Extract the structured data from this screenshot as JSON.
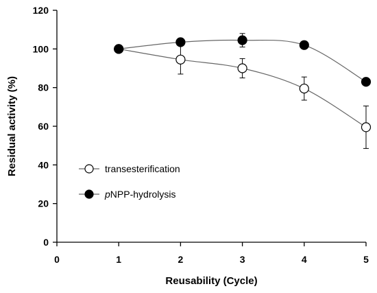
{
  "chart_data": {
    "type": "line",
    "xlabel": "Reusability (Cycle)",
    "ylabel": "Residual activity (%)",
    "xlim": [
      0,
      5
    ],
    "ylim": [
      0,
      120
    ],
    "x_ticks": [
      0,
      1,
      2,
      3,
      4,
      5
    ],
    "y_ticks": [
      0,
      20,
      40,
      60,
      80,
      100,
      120
    ],
    "grid": false,
    "legend_position": "lower-left",
    "series": [
      {
        "name": "transesterification",
        "name_parts": [
          {
            "text": "transesterification",
            "italic": false
          }
        ],
        "marker": "open-circle",
        "color": "#000000",
        "line_color": "#666666",
        "x": [
          1,
          2,
          3,
          4,
          5
        ],
        "y": [
          100,
          94.5,
          90,
          79.5,
          59.5
        ],
        "error": [
          0,
          7.5,
          5,
          6,
          11
        ]
      },
      {
        "name": "pNPP-hydrolysis",
        "name_parts": [
          {
            "text": "p",
            "italic": true
          },
          {
            "text": "NPP-hydrolysis",
            "italic": false
          }
        ],
        "marker": "filled-circle",
        "color": "#000000",
        "line_color": "#666666",
        "x": [
          1,
          2,
          3,
          4,
          5
        ],
        "y": [
          100,
          103.5,
          104.5,
          102,
          83
        ],
        "error": [
          0,
          0,
          3.5,
          0,
          0
        ]
      }
    ]
  }
}
